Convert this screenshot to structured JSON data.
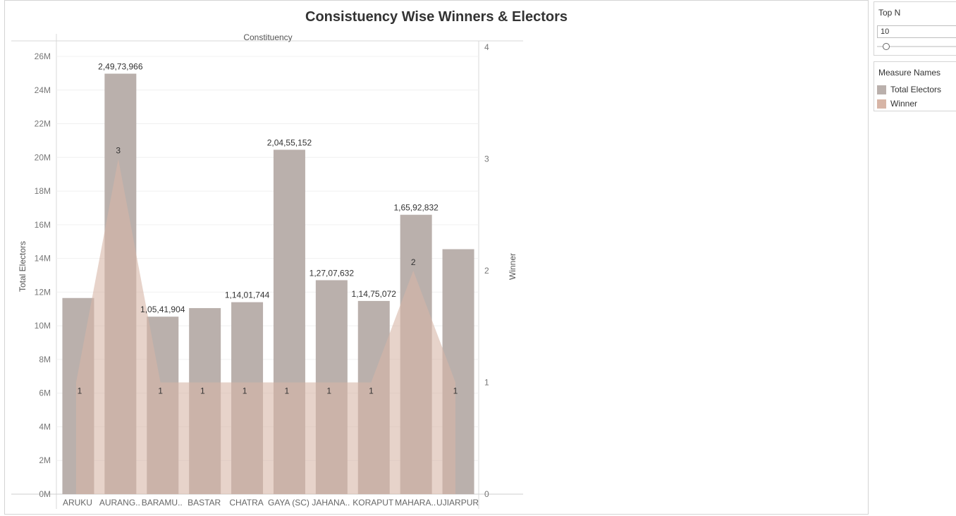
{
  "title": "Consistuency Wise Winners & Electors",
  "chart_data": {
    "type": "bar",
    "title": "Consistuency Wise Winners & Electors",
    "header_label": "Constituency",
    "xlabel": "",
    "ylabel": "Total Electors",
    "y2label": "Winner",
    "ylim": [
      0,
      26500000
    ],
    "y2lim": [
      0,
      4
    ],
    "y_ticks": [
      "0M",
      "2M",
      "4M",
      "6M",
      "8M",
      "10M",
      "12M",
      "14M",
      "16M",
      "18M",
      "20M",
      "22M",
      "24M",
      "26M"
    ],
    "y2_ticks": [
      "0",
      "1",
      "2",
      "3",
      "4"
    ],
    "categories": [
      "ARUKU",
      "AURANG..",
      "BARAMU..",
      "BASTAR",
      "CHATRA",
      "GAYA (SC)",
      "JAHANA..",
      "KORAPUT",
      "MAHARA..",
      "UJIARPUR"
    ],
    "series": [
      {
        "name": "Total Electors",
        "type": "bar",
        "axis": "left",
        "color": "#bab0ac",
        "values": [
          11650000,
          24973966,
          10541904,
          11050000,
          11401744,
          20455152,
          12707632,
          11475072,
          16592832,
          14550000
        ],
        "labels": [
          "",
          "2,49,73,966",
          "1,05,41,904",
          "",
          "1,14,01,744",
          "2,04,55,152",
          "1,27,07,632",
          "1,14,75,072",
          "1,65,92,832",
          ""
        ]
      },
      {
        "name": "Winner",
        "type": "area",
        "axis": "right",
        "color": "#d7b5a6",
        "values": [
          1,
          3,
          1,
          1,
          1,
          1,
          1,
          1,
          2,
          1
        ],
        "labels": [
          "1",
          "3",
          "1",
          "1",
          "1",
          "1",
          "1",
          "1",
          "2",
          "1"
        ]
      }
    ],
    "grid": true,
    "legend": "right"
  },
  "filter": {
    "title": "Top N",
    "value": "10"
  },
  "legend": {
    "title": "Measure Names",
    "items": [
      {
        "label": "Total Electors",
        "color": "#bab0ac"
      },
      {
        "label": "Winner",
        "color": "#d7b5a6"
      }
    ]
  }
}
